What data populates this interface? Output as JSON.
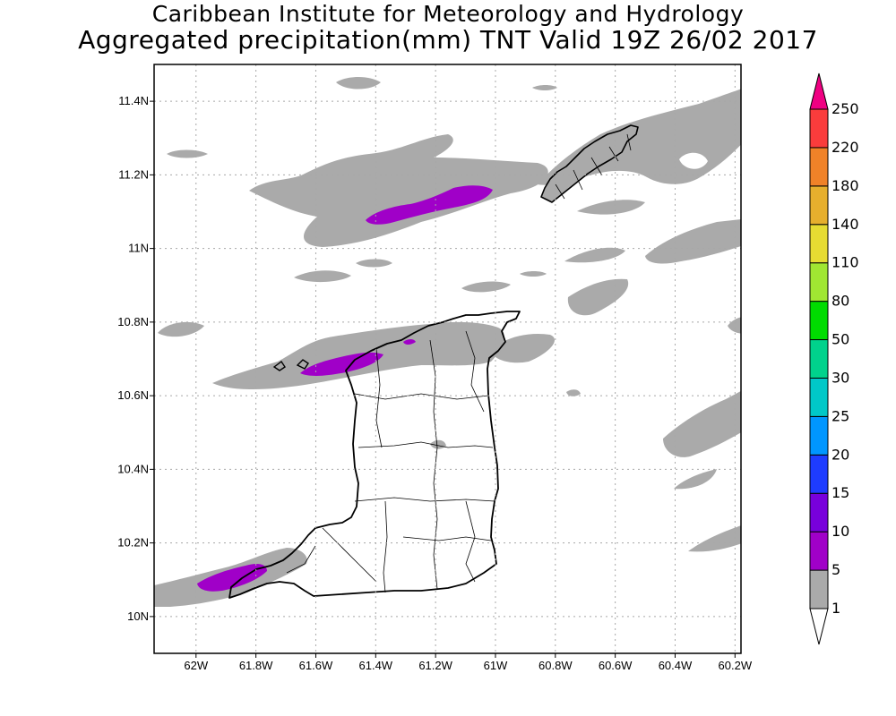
{
  "header": {
    "title_line1": "Caribbean Institute for Meteorology and Hydrology",
    "title_line2": "Aggregated precipitation(mm) TNT Valid 19Z 26/02 2017"
  },
  "map": {
    "lon_ticks": [
      "62W",
      "61.8W",
      "61.6W",
      "61.4W",
      "61.2W",
      "61W",
      "60.8W",
      "60.6W",
      "60.4W",
      "60.2W"
    ],
    "lat_ticks": [
      "10N",
      "10.2N",
      "10.4N",
      "10.6N",
      "10.8N",
      "11N",
      "11.2N",
      "11.4N"
    ],
    "lon_range": [
      -62.14,
      -60.18
    ],
    "lat_range": [
      9.9,
      11.5
    ],
    "grid": true
  },
  "colorbar": {
    "levels": [
      "1",
      "5",
      "10",
      "15",
      "20",
      "25",
      "30",
      "50",
      "80",
      "110",
      "140",
      "180",
      "220",
      "250"
    ],
    "colors": [
      "#ffffff",
      "#aaaaaa",
      "#a000c8",
      "#7800dc",
      "#1e3cff",
      "#0096ff",
      "#00c8c8",
      "#00d28c",
      "#00dc00",
      "#a0e632",
      "#e6dc32",
      "#e6af2d",
      "#f08228",
      "#fa3c3c",
      "#f00082"
    ]
  }
}
